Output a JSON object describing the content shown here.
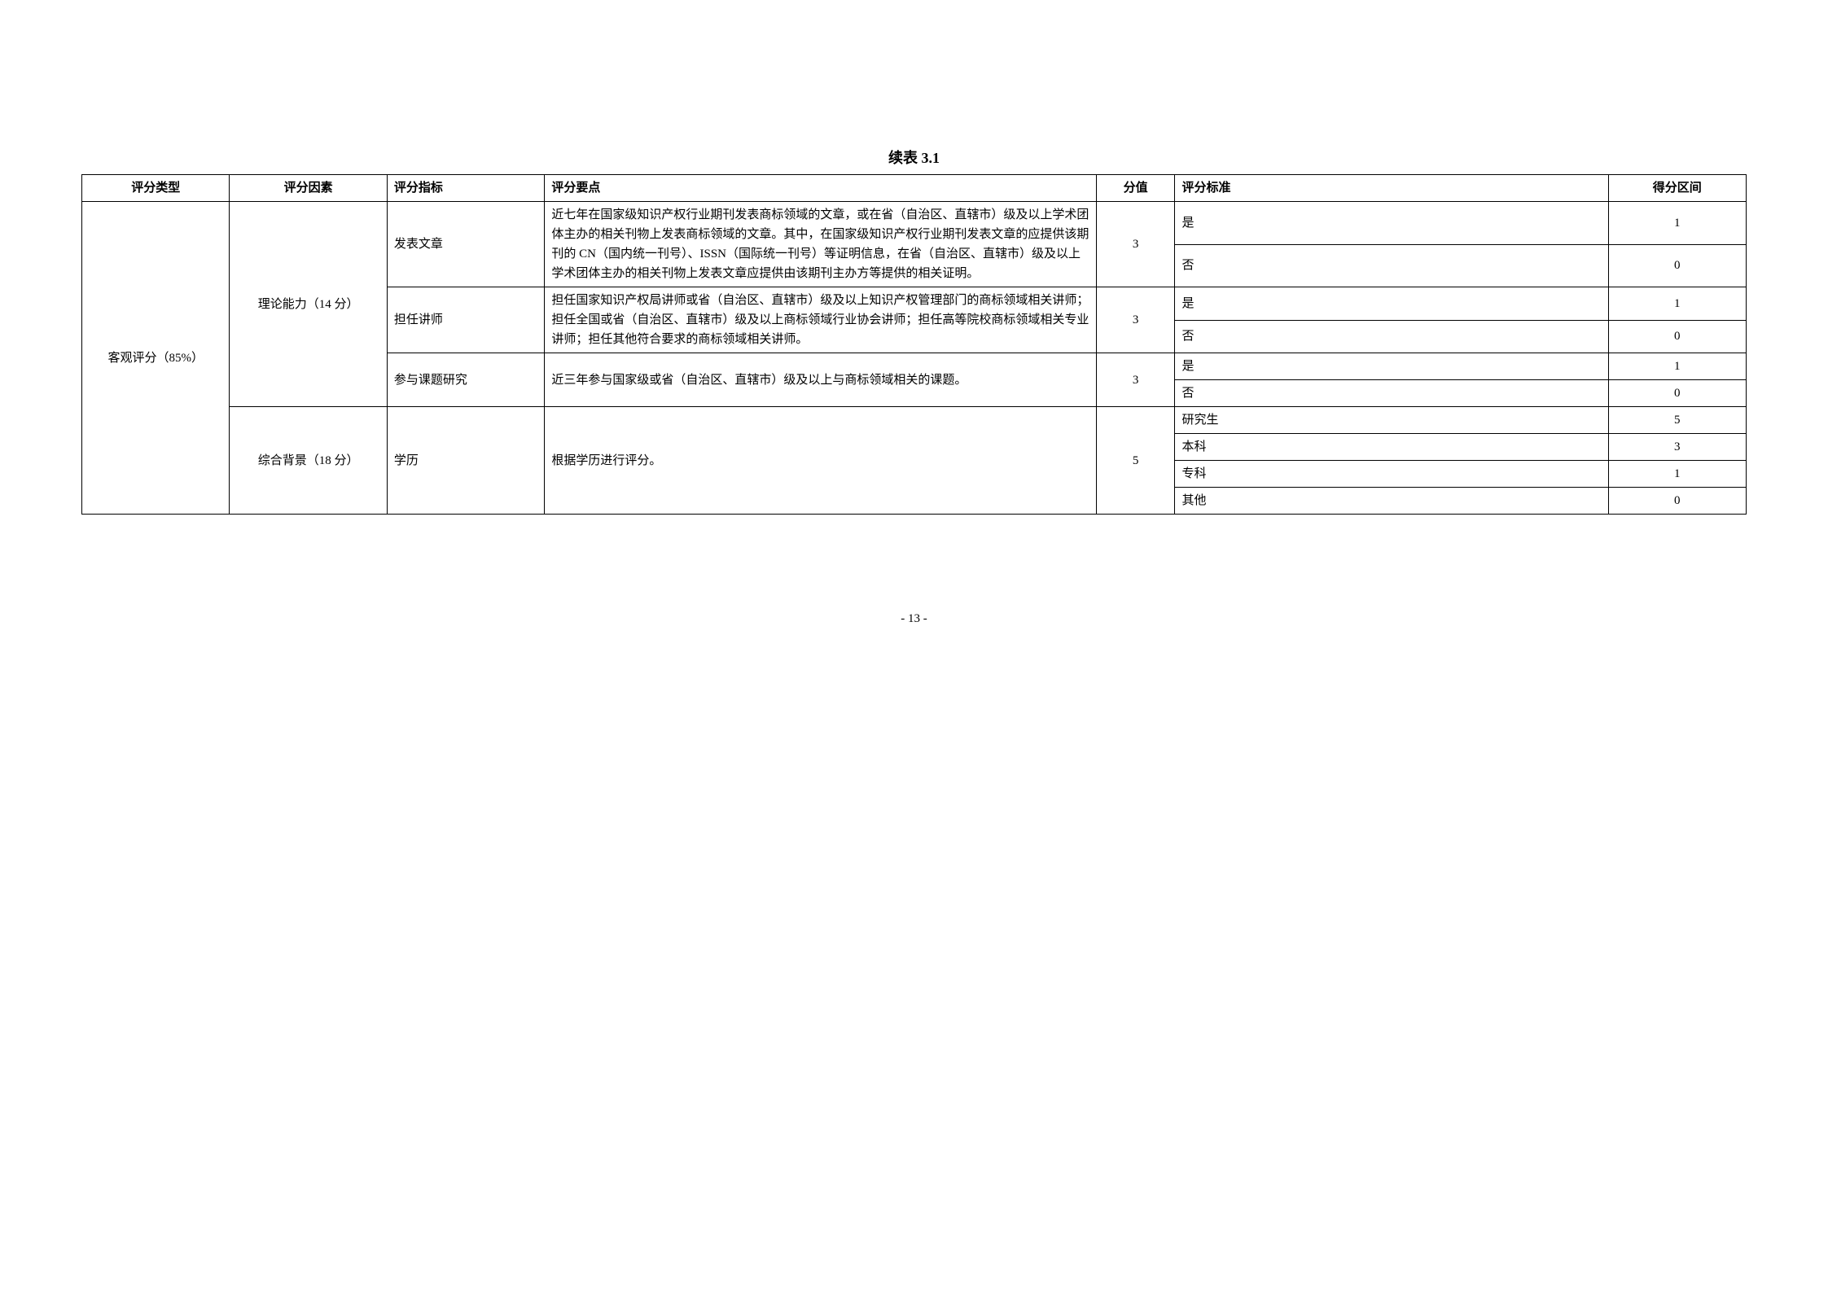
{
  "caption": "续表 3.1",
  "headers": {
    "type": "评分类型",
    "factor": "评分因素",
    "indicator": "评分指标",
    "points": "评分要点",
    "score": "分值",
    "criteria": "评分标准",
    "range": "得分区间"
  },
  "rows": {
    "type_cell": "客观评分（85%）",
    "factor1": "理论能力（14 分）",
    "factor2": "综合背景（18 分）",
    "indicator1": "发表文章",
    "indicator2": "担任讲师",
    "indicator3": "参与课题研究",
    "indicator4": "学历",
    "points1": "近七年在国家级知识产权行业期刊发表商标领域的文章，或在省（自治区、直辖市）级及以上学术团体主办的相关刊物上发表商标领域的文章。其中，在国家级知识产权行业期刊发表文章的应提供该期刊的 CN（国内统一刊号）、ISSN（国际统一刊号）等证明信息，在省（自治区、直辖市）级及以上学术团体主办的相关刊物上发表文章应提供由该期刊主办方等提供的相关证明。",
    "points2": "担任国家知识产权局讲师或省（自治区、直辖市）级及以上知识产权管理部门的商标领域相关讲师；担任全国或省（自治区、直辖市）级及以上商标领域行业协会讲师；担任高等院校商标领域相关专业讲师；担任其他符合要求的商标领域相关讲师。",
    "points3": "近三年参与国家级或省（自治区、直辖市）级及以上与商标领域相关的课题。",
    "points4": "根据学历进行评分。",
    "score1": "3",
    "score2": "3",
    "score3": "3",
    "score4": "5",
    "criteria_yes": "是",
    "criteria_no": "否",
    "criteria_grad": "研究生",
    "criteria_bachelor": "本科",
    "criteria_assoc": "专科",
    "criteria_other": "其他",
    "range_1": "1",
    "range_0": "0",
    "range_5": "5",
    "range_3": "3"
  },
  "page_num": "- 13 -"
}
